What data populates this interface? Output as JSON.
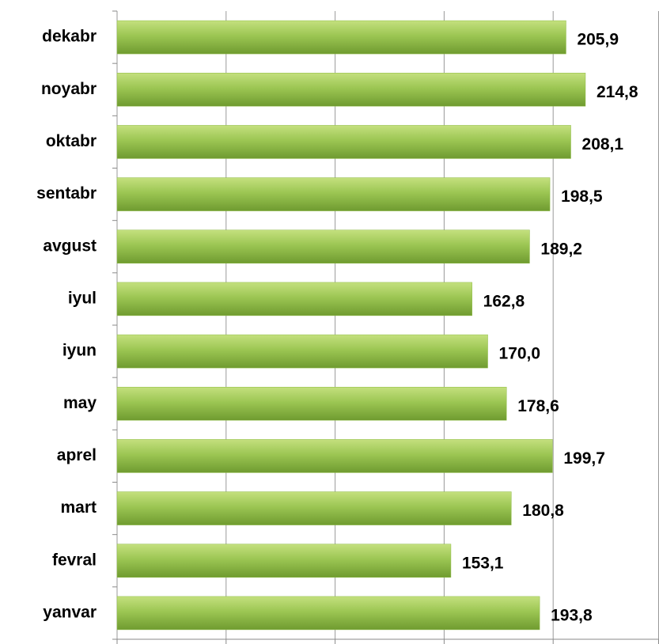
{
  "chart_data": {
    "type": "hbar",
    "categories": [
      "yanvar",
      "fevral",
      "mart",
      "aprel",
      "may",
      "iyun",
      "iyul",
      "avgust",
      "sentabr",
      "oktabr",
      "noyabr",
      "dekabr"
    ],
    "values": [
      193.8,
      153.1,
      180.8,
      199.7,
      178.6,
      170.0,
      162.8,
      189.2,
      198.5,
      208.1,
      214.8,
      205.9
    ],
    "value_labels": [
      "193,8",
      "153,1",
      "180,8",
      "199,7",
      "178,6",
      "170,0",
      "162,8",
      "189,2",
      "198,5",
      "208,1",
      "214,8",
      "205,9"
    ],
    "color": "#8dbb44",
    "xlim": [
      0,
      250
    ],
    "xticks": [
      0,
      50,
      100,
      150,
      200,
      250
    ],
    "grid": true
  }
}
